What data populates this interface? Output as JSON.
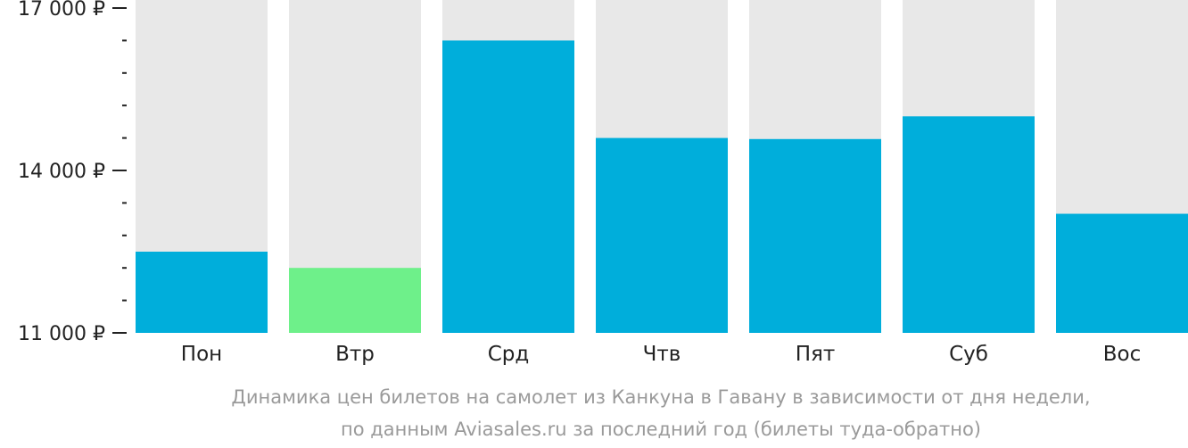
{
  "chart_data": {
    "type": "bar",
    "categories": [
      "Пон",
      "Втр",
      "Срд",
      "Чтв",
      "Пят",
      "Суб",
      "Вос"
    ],
    "values": [
      12500,
      12200,
      16400,
      14600,
      14580,
      15000,
      13200
    ],
    "ylim": [
      11000,
      17000
    ],
    "yticks": [
      {
        "value": 11000,
        "label": "11 000 ₽"
      },
      {
        "value": 14000,
        "label": "14 000 ₽"
      },
      {
        "value": 17000,
        "label": "17 000 ₽"
      }
    ],
    "minor_tick_step": 600,
    "grid": false,
    "caption": [
      "Динамика цен билетов на самолет из Канкуна в Гавану в зависимости от дня недели,",
      "по данным Aviasales.ru за последний год (билеты туда-обратно)"
    ],
    "highlight_index": 1
  },
  "colors": {
    "bar": "#00aedb",
    "bar_highlight": "#6ef08a",
    "bar_background": "#e8e8e8",
    "axis": "#222222",
    "caption": "#9a9a9a"
  }
}
